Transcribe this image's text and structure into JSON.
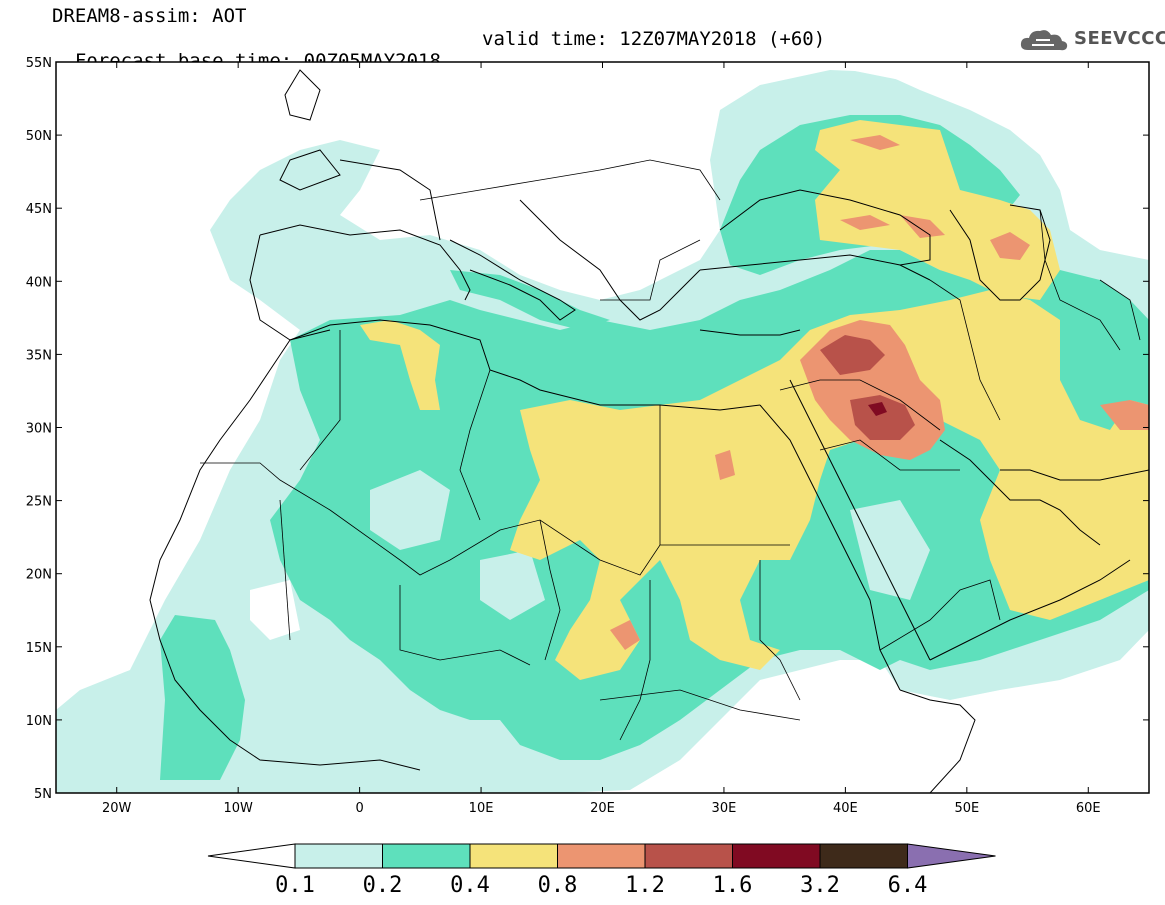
{
  "header": {
    "line1": "DREAM8-assim: AOT",
    "base_time": "Forecast base time: 00Z05MAY2018",
    "valid_time": "valid time: 12Z07MAY2018 (+60)"
  },
  "logo": {
    "text": "SEEVCCC",
    "icon": "cloud-icon"
  },
  "map": {
    "lon_ticks": [
      "20W",
      "10W",
      "0",
      "10E",
      "20E",
      "30E",
      "40E",
      "50E",
      "60E"
    ],
    "lat_ticks": [
      "55N",
      "50N",
      "45N",
      "40N",
      "35N",
      "30N",
      "25N",
      "20N",
      "15N",
      "10N",
      "5N"
    ],
    "lon_range": [
      -25,
      65
    ],
    "lat_range": [
      5,
      55
    ]
  },
  "colorbar": {
    "labels": [
      "0.1",
      "0.2",
      "0.4",
      "0.8",
      "1.2",
      "1.6",
      "3.2",
      "6.4"
    ],
    "colors": [
      "#c8f0ea",
      "#5ee0bc",
      "#f5e37a",
      "#ec9571",
      "#b8524a",
      "#800a22",
      "#3e2a1a"
    ],
    "under_color": "#ffffff",
    "over_color": "#8a6fb0"
  }
}
